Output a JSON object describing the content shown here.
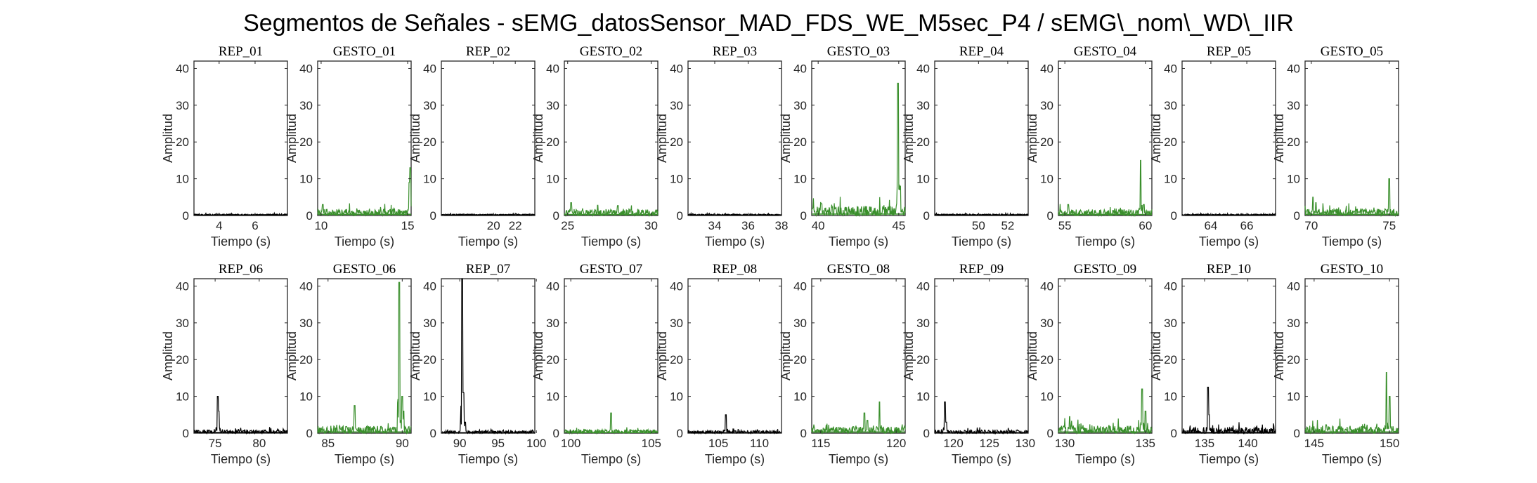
{
  "title": "Segmentos de Señales - sEMG_datosSensor_MAD_FDS_WE_M5sec_P4 / sEMG\\_nom\\_WD\\_IIR",
  "colors": {
    "rep": "#000000",
    "gesto": "#3a8f2c",
    "axes": "#262626"
  },
  "chart_data": [
    {
      "type": "line",
      "title": "REP_01",
      "xlabel": "Tiempo (s)",
      "ylabel": "Amplitud",
      "ylim": [
        0,
        42
      ],
      "yticks": [
        0,
        10,
        20,
        30,
        40
      ],
      "xlim": [
        2.6,
        7.8
      ],
      "xticks": [
        4,
        6
      ],
      "series": [
        {
          "name": "REP_01",
          "kind": "rep",
          "baseline": 0.25,
          "noise": 0.15,
          "peaks": []
        }
      ]
    },
    {
      "type": "line",
      "title": "GESTO_01",
      "xlabel": "Tiempo (s)",
      "ylabel": "Amplitud",
      "ylim": [
        0,
        42
      ],
      "yticks": [
        0,
        10,
        20,
        30,
        40
      ],
      "xlim": [
        9.8,
        15.2
      ],
      "xticks": [
        10,
        15
      ],
      "series": [
        {
          "name": "GESTO_01",
          "kind": "gesto",
          "baseline": 0.8,
          "noise": 1.0,
          "peaks": [
            [
              10.1,
              3
            ],
            [
              15.1,
              9
            ],
            [
              15.15,
              13
            ]
          ]
        }
      ]
    },
    {
      "type": "line",
      "title": "REP_02",
      "xlabel": "Tiempo (s)",
      "ylabel": "Amplitud",
      "ylim": [
        0,
        42
      ],
      "yticks": [
        0,
        10,
        20,
        30,
        40
      ],
      "xlim": [
        15.2,
        23.8
      ],
      "xticks": [
        20,
        22
      ],
      "series": [
        {
          "name": "REP_02",
          "kind": "rep",
          "baseline": 0.25,
          "noise": 0.15,
          "peaks": []
        }
      ]
    },
    {
      "type": "line",
      "title": "GESTO_02",
      "xlabel": "Tiempo (s)",
      "ylabel": "Amplitud",
      "ylim": [
        0,
        42
      ],
      "yticks": [
        0,
        10,
        20,
        30,
        40
      ],
      "xlim": [
        24.8,
        30.4
      ],
      "xticks": [
        25,
        30
      ],
      "series": [
        {
          "name": "GESTO_02",
          "kind": "gesto",
          "baseline": 0.7,
          "noise": 1.1,
          "peaks": [
            [
              25.2,
              3.5
            ],
            [
              26.8,
              2.8
            ],
            [
              28.0,
              2.7
            ]
          ]
        }
      ]
    },
    {
      "type": "line",
      "title": "REP_03",
      "xlabel": "Tiempo (s)",
      "ylabel": "Amplitud",
      "ylim": [
        0,
        42
      ],
      "yticks": [
        0,
        10,
        20,
        30,
        40
      ],
      "xlim": [
        32.4,
        38.0
      ],
      "xticks": [
        34,
        36,
        38
      ],
      "series": [
        {
          "name": "REP_03",
          "kind": "rep",
          "baseline": 0.25,
          "noise": 0.15,
          "peaks": []
        }
      ]
    },
    {
      "type": "line",
      "title": "GESTO_03",
      "xlabel": "Tiempo (s)",
      "ylabel": "Amplitud",
      "ylim": [
        0,
        42
      ],
      "yticks": [
        0,
        10,
        20,
        30,
        40
      ],
      "xlim": [
        39.6,
        45.4
      ],
      "xticks": [
        40,
        45
      ],
      "series": [
        {
          "name": "GESTO_03",
          "kind": "gesto",
          "baseline": 1.0,
          "noise": 1.6,
          "peaks": [
            [
              40.2,
              3.2
            ],
            [
              44.95,
              36
            ],
            [
              45.1,
              8
            ]
          ]
        }
      ]
    },
    {
      "type": "line",
      "title": "REP_04",
      "xlabel": "Tiempo (s)",
      "ylabel": "Amplitud",
      "ylim": [
        0,
        42
      ],
      "yticks": [
        0,
        10,
        20,
        30,
        40
      ],
      "xlim": [
        47.0,
        53.4
      ],
      "xticks": [
        50,
        52
      ],
      "series": [
        {
          "name": "REP_04",
          "kind": "rep",
          "baseline": 0.25,
          "noise": 0.15,
          "peaks": []
        }
      ]
    },
    {
      "type": "line",
      "title": "GESTO_04",
      "xlabel": "Tiempo (s)",
      "ylabel": "Amplitud",
      "ylim": [
        0,
        42
      ],
      "yticks": [
        0,
        10,
        20,
        30,
        40
      ],
      "xlim": [
        54.6,
        60.4
      ],
      "xticks": [
        55,
        60
      ],
      "series": [
        {
          "name": "GESTO_04",
          "kind": "gesto",
          "baseline": 0.7,
          "noise": 1.0,
          "peaks": [
            [
              55.2,
              3
            ],
            [
              59.7,
              15
            ],
            [
              59.9,
              3
            ]
          ]
        }
      ]
    },
    {
      "type": "line",
      "title": "REP_05",
      "xlabel": "Tiempo (s)",
      "ylabel": "Amplitud",
      "ylim": [
        0,
        42
      ],
      "yticks": [
        0,
        10,
        20,
        30,
        40
      ],
      "xlim": [
        62.4,
        67.6
      ],
      "xticks": [
        64,
        66
      ],
      "series": [
        {
          "name": "REP_05",
          "kind": "rep",
          "baseline": 0.25,
          "noise": 0.15,
          "peaks": []
        }
      ]
    },
    {
      "type": "line",
      "title": "GESTO_05",
      "xlabel": "Tiempo (s)",
      "ylabel": "Amplitud",
      "ylim": [
        0,
        42
      ],
      "yticks": [
        0,
        10,
        20,
        30,
        40
      ],
      "xlim": [
        69.6,
        75.6
      ],
      "xticks": [
        70,
        75
      ],
      "series": [
        {
          "name": "GESTO_05",
          "kind": "gesto",
          "baseline": 0.8,
          "noise": 1.0,
          "peaks": [
            [
              70.1,
              5
            ],
            [
              70.3,
              3.5
            ],
            [
              75.0,
              10
            ]
          ]
        }
      ]
    },
    {
      "type": "line",
      "title": "REP_06",
      "xlabel": "Tiempo (s)",
      "ylabel": "Amplitud",
      "ylim": [
        0,
        42
      ],
      "yticks": [
        0,
        10,
        20,
        30,
        40
      ],
      "xlim": [
        72.6,
        83.2
      ],
      "xticks": [
        75,
        80
      ],
      "series": [
        {
          "name": "REP_06",
          "kind": "rep",
          "baseline": 0.4,
          "noise": 0.5,
          "peaks": [
            [
              75.3,
              10
            ],
            [
              75.4,
              6
            ]
          ]
        }
      ]
    },
    {
      "type": "line",
      "title": "GESTO_06",
      "xlabel": "Tiempo (s)",
      "ylabel": "Amplitud",
      "ylim": [
        0,
        42
      ],
      "yticks": [
        0,
        10,
        20,
        30,
        40
      ],
      "xlim": [
        84.3,
        90.6
      ],
      "xticks": [
        85,
        90
      ],
      "series": [
        {
          "name": "GESTO_06",
          "kind": "gesto",
          "baseline": 0.8,
          "noise": 1.2,
          "peaks": [
            [
              86.8,
              7.5
            ],
            [
              89.8,
              41
            ],
            [
              90.0,
              10
            ],
            [
              90.1,
              6
            ]
          ]
        }
      ]
    },
    {
      "type": "line",
      "title": "REP_07",
      "xlabel": "Tiempo (s)",
      "ylabel": "Amplitud",
      "ylim": [
        0,
        42
      ],
      "yticks": [
        0,
        10,
        20,
        30,
        40
      ],
      "xlim": [
        87.6,
        99.8
      ],
      "xticks": [
        90,
        95,
        100
      ],
      "series": [
        {
          "name": "REP_07",
          "kind": "rep",
          "baseline": 0.3,
          "noise": 0.4,
          "peaks": [
            [
              90.3,
              42
            ],
            [
              90.5,
              11
            ],
            [
              90.7,
              3
            ]
          ]
        }
      ]
    },
    {
      "type": "line",
      "title": "GESTO_07",
      "xlabel": "Tiempo (s)",
      "ylabel": "Amplitud",
      "ylim": [
        0,
        42
      ],
      "yticks": [
        0,
        10,
        20,
        30,
        40
      ],
      "xlim": [
        99.6,
        105.4
      ],
      "xticks": [
        100,
        105
      ],
      "series": [
        {
          "name": "GESTO_07",
          "kind": "gesto",
          "baseline": 0.4,
          "noise": 0.6,
          "peaks": [
            [
              102.5,
              5.5
            ]
          ]
        }
      ]
    },
    {
      "type": "line",
      "title": "REP_08",
      "xlabel": "Tiempo (s)",
      "ylabel": "Amplitud",
      "ylim": [
        0,
        42
      ],
      "yticks": [
        0,
        10,
        20,
        30,
        40
      ],
      "xlim": [
        101.3,
        112.7
      ],
      "xticks": [
        105,
        110
      ],
      "series": [
        {
          "name": "REP_08",
          "kind": "rep",
          "baseline": 0.3,
          "noise": 0.4,
          "peaks": [
            [
              105.9,
              5
            ]
          ]
        }
      ]
    },
    {
      "type": "line",
      "title": "GESTO_08",
      "xlabel": "Tiempo (s)",
      "ylabel": "Amplitud",
      "ylim": [
        0,
        42
      ],
      "yticks": [
        0,
        10,
        20,
        30,
        40
      ],
      "xlim": [
        114.4,
        120.6
      ],
      "xticks": [
        115,
        120
      ],
      "series": [
        {
          "name": "GESTO_08",
          "kind": "gesto",
          "baseline": 0.8,
          "noise": 1.0,
          "peaks": [
            [
              117.9,
              5.5
            ],
            [
              118.1,
              3.5
            ],
            [
              118.9,
              8.5
            ]
          ]
        }
      ]
    },
    {
      "type": "line",
      "title": "REP_09",
      "xlabel": "Tiempo (s)",
      "ylabel": "Amplitud",
      "ylim": [
        0,
        42
      ],
      "yticks": [
        0,
        10,
        20,
        30,
        40
      ],
      "xlim": [
        117.4,
        130.4
      ],
      "xticks": [
        120,
        125,
        130
      ],
      "series": [
        {
          "name": "REP_09",
          "kind": "rep",
          "baseline": 0.3,
          "noise": 0.5,
          "peaks": [
            [
              118.8,
              8.5
            ],
            [
              119.0,
              3
            ]
          ]
        }
      ]
    },
    {
      "type": "line",
      "title": "GESTO_09",
      "xlabel": "Tiempo (s)",
      "ylabel": "Amplitud",
      "ylim": [
        0,
        42
      ],
      "yticks": [
        0,
        10,
        20,
        30,
        40
      ],
      "xlim": [
        129.6,
        135.4
      ],
      "xticks": [
        130,
        135
      ],
      "series": [
        {
          "name": "GESTO_09",
          "kind": "gesto",
          "baseline": 0.8,
          "noise": 1.2,
          "peaks": [
            [
              130.3,
              4.5
            ],
            [
              134.8,
              12
            ],
            [
              135.0,
              6
            ]
          ]
        }
      ]
    },
    {
      "type": "line",
      "title": "REP_10",
      "xlabel": "Tiempo (s)",
      "ylabel": "Amplitud",
      "ylim": [
        0,
        42
      ],
      "yticks": [
        0,
        10,
        20,
        30,
        40
      ],
      "xlim": [
        132.4,
        143.2
      ],
      "xticks": [
        135,
        140
      ],
      "series": [
        {
          "name": "REP_10",
          "kind": "rep",
          "baseline": 0.4,
          "noise": 1.3,
          "peaks": [
            [
              135.4,
              12.5
            ],
            [
              135.5,
              5
            ]
          ]
        }
      ]
    },
    {
      "type": "line",
      "title": "GESTO_10",
      "xlabel": "Tiempo (s)",
      "ylabel": "Amplitud",
      "ylim": [
        0,
        42
      ],
      "yticks": [
        0,
        10,
        20,
        30,
        40
      ],
      "xlim": [
        144.4,
        150.6
      ],
      "xticks": [
        145,
        150
      ],
      "series": [
        {
          "name": "GESTO_10",
          "kind": "gesto",
          "baseline": 0.8,
          "noise": 1.2,
          "peaks": [
            [
              145.8,
              2.3
            ],
            [
              149.8,
              16.5
            ],
            [
              150.0,
              10
            ]
          ]
        }
      ]
    }
  ]
}
